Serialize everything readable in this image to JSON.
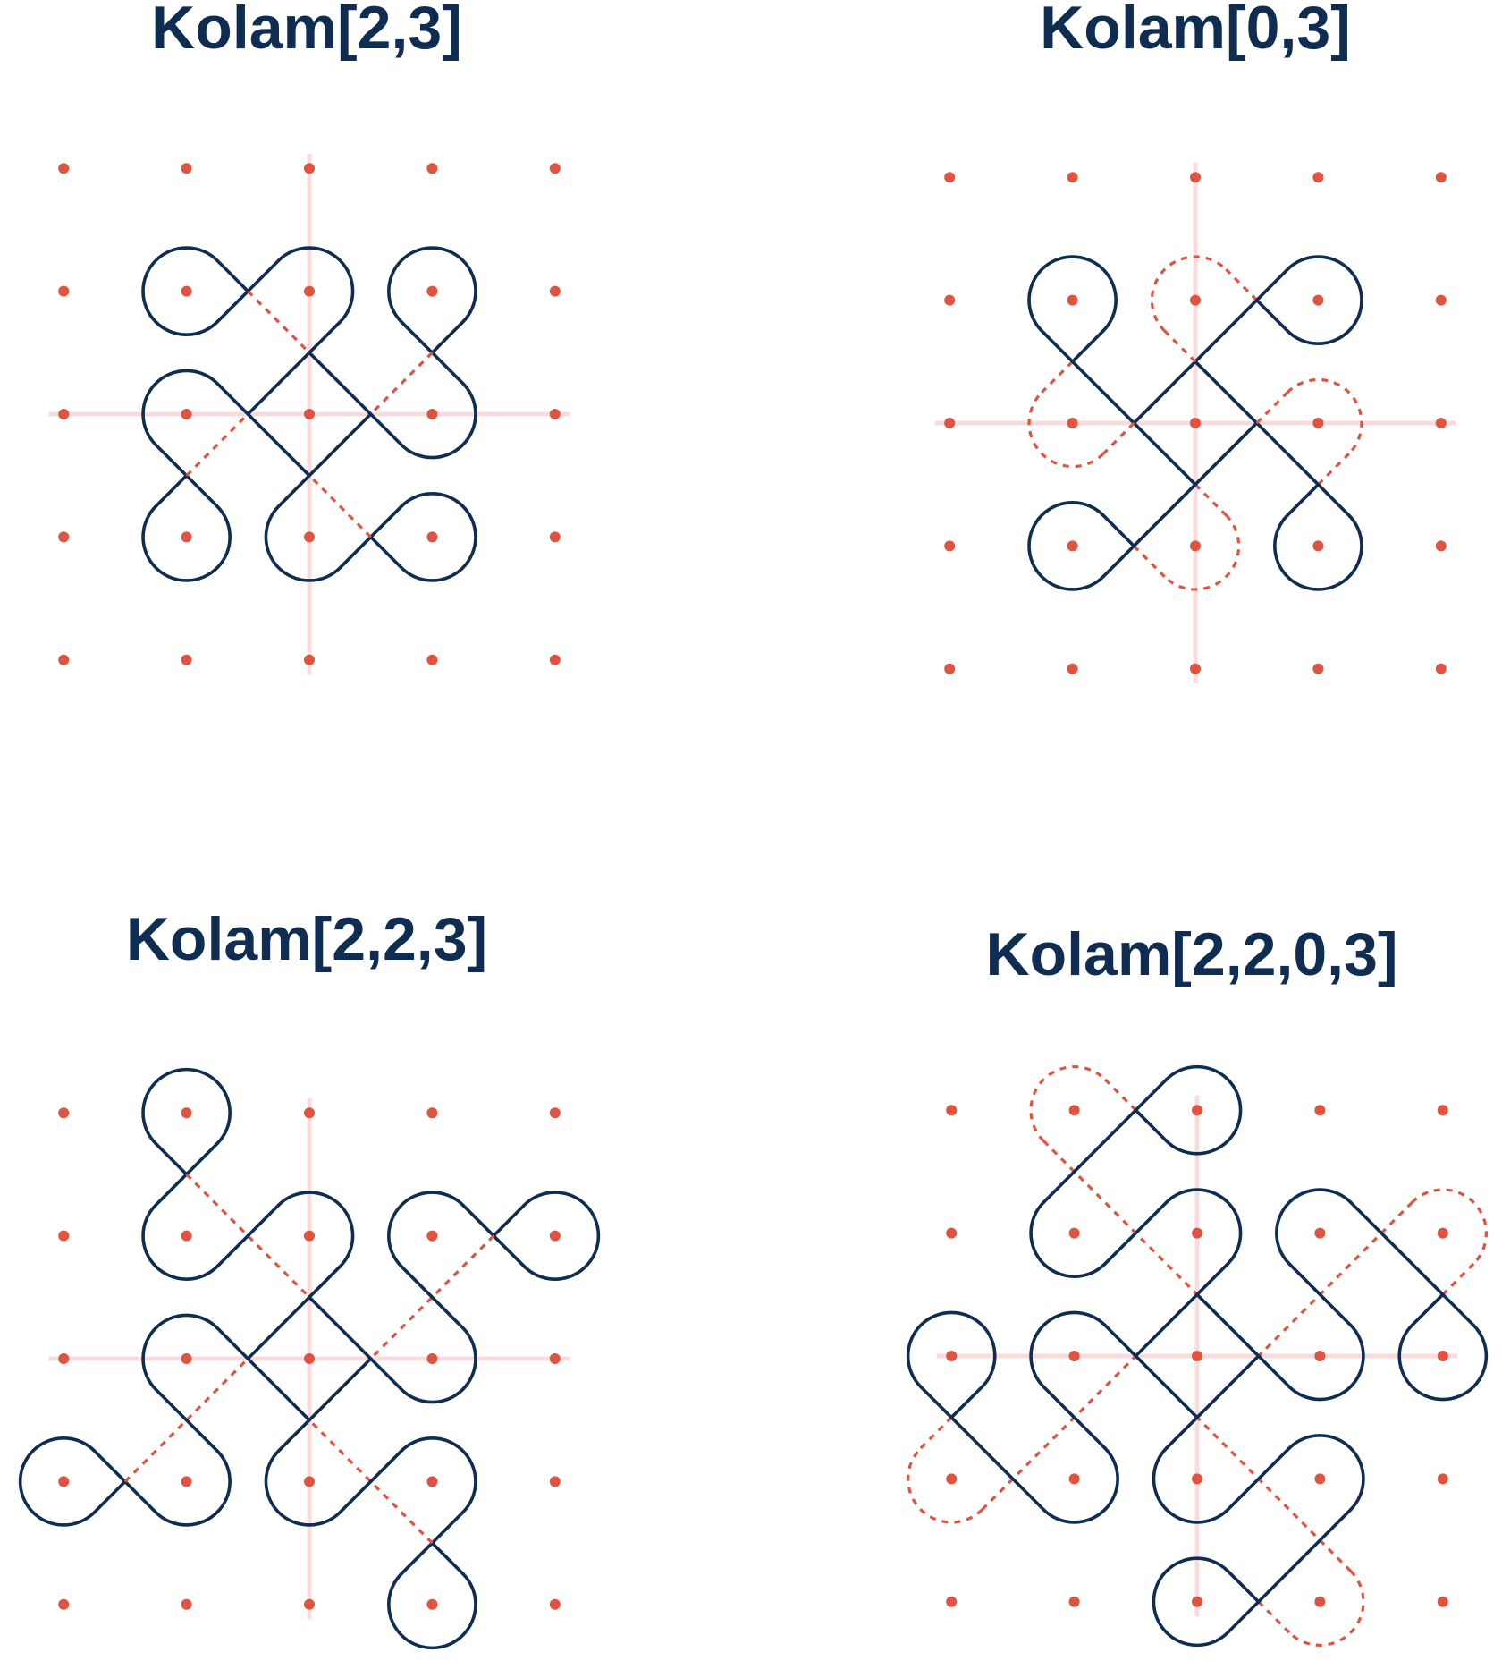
{
  "colors": {
    "curve": "#0f2d52",
    "dot": "#e0533f",
    "dotted_curve": "#e0533f",
    "axis": "#f8dcdc",
    "title": "#0f2d52"
  },
  "grid_size": [
    5,
    5
  ],
  "panels": [
    {
      "title": "Kolam[2,3]"
    },
    {
      "title": "Kolam[0,3]"
    },
    {
      "title": "Kolam[2,2,3]"
    },
    {
      "title": "Kolam[2,2,0,3]"
    }
  ]
}
